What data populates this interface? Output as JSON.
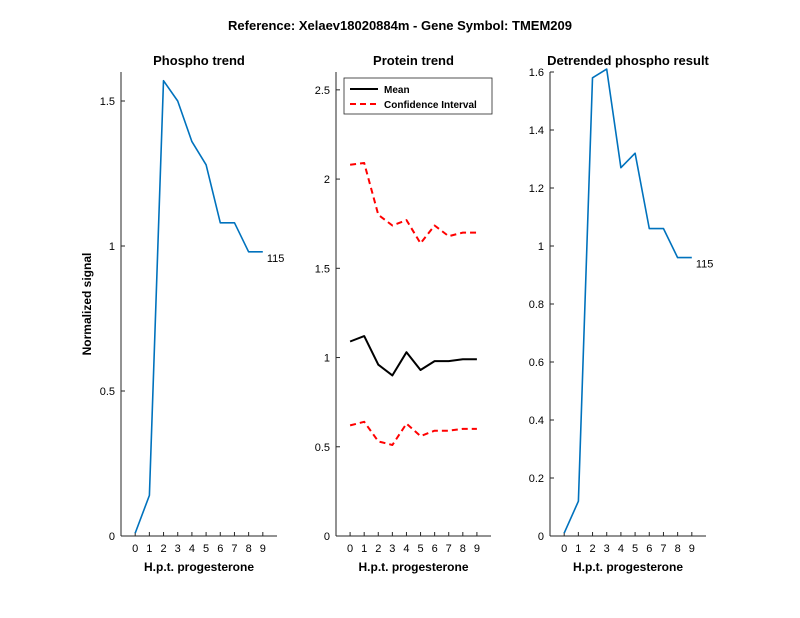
{
  "figure_title": "Reference:  Xelaev18020884m - Gene Symbol:  TMEM209",
  "colors": {
    "series": "#0072BD",
    "mean": "#000000",
    "ci": "#FF0000"
  },
  "chart_data": [
    {
      "type": "line",
      "title": "Phospho trend",
      "xlabel": "H.p.t. progesterone",
      "ylabel": "Normalized signal",
      "xlim": [
        -1,
        10
      ],
      "ylim": [
        0,
        1.6
      ],
      "xticks": [
        0,
        1,
        2,
        3,
        4,
        5,
        6,
        7,
        8,
        9
      ],
      "yticks": [
        0,
        0.5,
        1,
        1.5
      ],
      "ytick_labels": [
        "0",
        "0.5",
        "1",
        "1.5"
      ],
      "series": [
        {
          "x": [
            0,
            1,
            2,
            3,
            4,
            5,
            6,
            7,
            8,
            9
          ],
          "y": [
            0.01,
            0.14,
            1.57,
            1.5,
            1.36,
            1.28,
            1.08,
            1.08,
            0.98,
            0.98
          ]
        }
      ],
      "end_label": "115"
    },
    {
      "type": "line",
      "title": "Protein trend",
      "xlabel": "H.p.t. progesterone",
      "ylabel": "",
      "xlim": [
        -1,
        10
      ],
      "ylim": [
        0,
        2.6
      ],
      "xticks": [
        0,
        1,
        2,
        3,
        4,
        5,
        6,
        7,
        8,
        9
      ],
      "yticks": [
        0,
        0.5,
        1,
        1.5,
        2,
        2.5
      ],
      "ytick_labels": [
        "0",
        "0.5",
        "1",
        "1.5",
        "2",
        "2.5"
      ],
      "legend": "top-left",
      "series": [
        {
          "name": "Mean",
          "style": "solid",
          "x": [
            0,
            1,
            2,
            3,
            4,
            5,
            6,
            7,
            8,
            9
          ],
          "y": [
            1.09,
            1.12,
            0.96,
            0.9,
            1.03,
            0.93,
            0.98,
            0.98,
            0.99,
            0.99
          ]
        },
        {
          "name": "Confidence Interval",
          "style": "dashed",
          "x": [
            0,
            1,
            2,
            3,
            4,
            5,
            6,
            7,
            8,
            9
          ],
          "y": [
            2.08,
            2.09,
            1.8,
            1.74,
            1.77,
            1.64,
            1.74,
            1.68,
            1.7,
            1.7
          ]
        },
        {
          "name": "Confidence Interval",
          "style": "dashed",
          "in_legend": false,
          "x": [
            0,
            1,
            2,
            3,
            4,
            5,
            6,
            7,
            8,
            9
          ],
          "y": [
            0.62,
            0.64,
            0.53,
            0.51,
            0.63,
            0.56,
            0.59,
            0.59,
            0.6,
            0.6
          ]
        }
      ]
    },
    {
      "type": "line",
      "title": "Detrended phospho result",
      "xlabel": "H.p.t. progesterone",
      "ylabel": "",
      "xlim": [
        -1,
        10
      ],
      "ylim": [
        0,
        1.6
      ],
      "xticks": [
        0,
        1,
        2,
        3,
        4,
        5,
        6,
        7,
        8,
        9
      ],
      "yticks": [
        0,
        0.2,
        0.4,
        0.6,
        0.8,
        1,
        1.2,
        1.4,
        1.6
      ],
      "ytick_labels": [
        "0",
        "0.2",
        "0.4",
        "0.6",
        "0.8",
        "1",
        "1.2",
        "1.4",
        "1.6"
      ],
      "series": [
        {
          "x": [
            0,
            1,
            2,
            3,
            4,
            5,
            6,
            7,
            8,
            9
          ],
          "y": [
            0.01,
            0.12,
            1.58,
            1.61,
            1.27,
            1.32,
            1.06,
            1.06,
            0.96,
            0.96
          ]
        }
      ],
      "end_label": "115"
    }
  ]
}
